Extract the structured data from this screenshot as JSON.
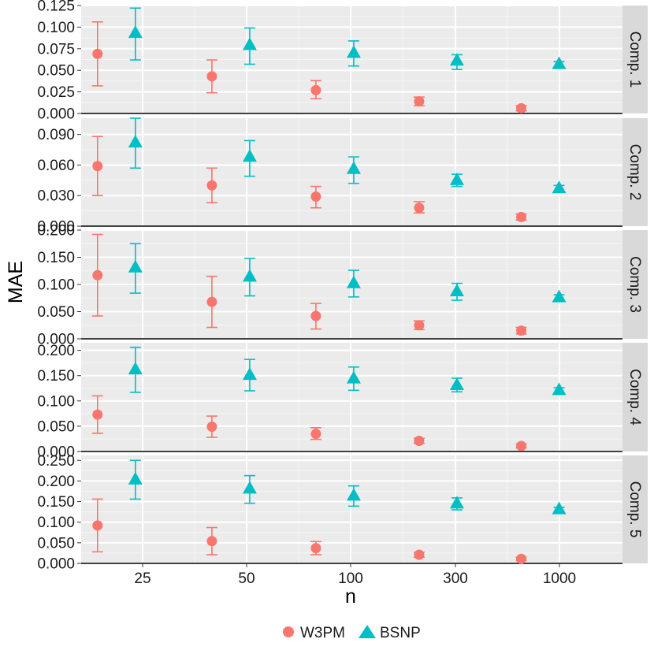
{
  "chart_data": {
    "type": "scatter",
    "xlabel": "n",
    "ylabel": "MAE",
    "x_tick_labels": [
      "25",
      "50",
      "100",
      "300",
      "1000"
    ],
    "categories": [
      "21",
      "45",
      "90",
      "250",
      "800"
    ],
    "series_styles": [
      {
        "name": "W3PM",
        "color": "#F8766D",
        "marker": "circle"
      },
      {
        "name": "BSNP",
        "color": "#00BFC4",
        "marker": "triangle"
      }
    ],
    "panels": [
      {
        "strip": "Comp. 1",
        "ylim": [
          0,
          0.125
        ],
        "yticks": [
          "0.000",
          "0.025",
          "0.050",
          "0.075",
          "0.100",
          "0.125"
        ],
        "series": [
          {
            "name": "W3PM",
            "values": [
              0.069,
              0.043,
              0.027,
              0.014,
              0.006
            ],
            "lower": [
              0.032,
              0.024,
              0.017,
              0.009,
              0.003
            ],
            "upper": [
              0.106,
              0.062,
              0.038,
              0.019,
              0.009
            ]
          },
          {
            "name": "BSNP",
            "values": [
              0.093,
              0.079,
              0.07,
              0.061,
              0.057
            ],
            "lower": [
              0.062,
              0.057,
              0.055,
              0.051,
              0.054
            ],
            "upper": [
              0.122,
              0.099,
              0.084,
              0.068,
              0.06
            ]
          }
        ]
      },
      {
        "strip": "Comp. 2",
        "ylim": [
          0,
          0.106
        ],
        "yticks": [
          "0.000",
          "0.030",
          "0.060",
          "0.090"
        ],
        "series": [
          {
            "name": "W3PM",
            "values": [
              0.059,
              0.04,
              0.029,
              0.018,
              0.009
            ],
            "lower": [
              0.03,
              0.023,
              0.018,
              0.013,
              0.006
            ],
            "upper": [
              0.088,
              0.057,
              0.039,
              0.024,
              0.012
            ]
          },
          {
            "name": "BSNP",
            "values": [
              0.082,
              0.068,
              0.056,
              0.045,
              0.037
            ],
            "lower": [
              0.057,
              0.049,
              0.042,
              0.039,
              0.034
            ],
            "upper": [
              0.106,
              0.084,
              0.068,
              0.051,
              0.04
            ]
          }
        ]
      },
      {
        "strip": "Comp. 3",
        "ylim": [
          0,
          0.2
        ],
        "yticks": [
          "0.000",
          "0.050",
          "0.100",
          "0.150",
          "0.200"
        ],
        "series": [
          {
            "name": "W3PM",
            "values": [
              0.117,
              0.068,
              0.042,
              0.025,
              0.015
            ],
            "lower": [
              0.042,
              0.021,
              0.018,
              0.017,
              0.009
            ],
            "upper": [
              0.192,
              0.115,
              0.065,
              0.033,
              0.021
            ]
          },
          {
            "name": "BSNP",
            "values": [
              0.131,
              0.114,
              0.102,
              0.087,
              0.076
            ],
            "lower": [
              0.084,
              0.079,
              0.077,
              0.071,
              0.071
            ],
            "upper": [
              0.175,
              0.148,
              0.126,
              0.102,
              0.081
            ]
          }
        ]
      },
      {
        "strip": "Comp. 4",
        "ylim": [
          0,
          0.215
        ],
        "yticks": [
          "0.000",
          "0.050",
          "0.100",
          "0.150",
          "0.200"
        ],
        "series": [
          {
            "name": "W3PM",
            "values": [
              0.073,
              0.049,
              0.035,
              0.021,
              0.011
            ],
            "lower": [
              0.036,
              0.028,
              0.024,
              0.016,
              0.007
            ],
            "upper": [
              0.11,
              0.07,
              0.047,
              0.026,
              0.015
            ]
          },
          {
            "name": "BSNP",
            "values": [
              0.162,
              0.151,
              0.144,
              0.131,
              0.121
            ],
            "lower": [
              0.117,
              0.12,
              0.121,
              0.118,
              0.116
            ],
            "upper": [
              0.206,
              0.182,
              0.167,
              0.145,
              0.126
            ]
          }
        ]
      },
      {
        "strip": "Comp. 5",
        "ylim": [
          0,
          0.262
        ],
        "yticks": [
          "0.000",
          "0.050",
          "0.100",
          "0.150",
          "0.200",
          "0.250"
        ],
        "series": [
          {
            "name": "W3PM",
            "values": [
              0.092,
              0.054,
              0.037,
              0.021,
              0.011
            ],
            "lower": [
              0.028,
              0.021,
              0.021,
              0.015,
              0.007
            ],
            "upper": [
              0.156,
              0.087,
              0.053,
              0.027,
              0.015
            ]
          },
          {
            "name": "BSNP",
            "values": [
              0.203,
              0.181,
              0.164,
              0.145,
              0.131
            ],
            "lower": [
              0.156,
              0.146,
              0.139,
              0.13,
              0.126
            ],
            "upper": [
              0.25,
              0.213,
              0.188,
              0.159,
              0.136
            ]
          }
        ]
      }
    ],
    "legend": {
      "position": "bottom",
      "entries": [
        "W3PM",
        "BSNP"
      ]
    }
  }
}
